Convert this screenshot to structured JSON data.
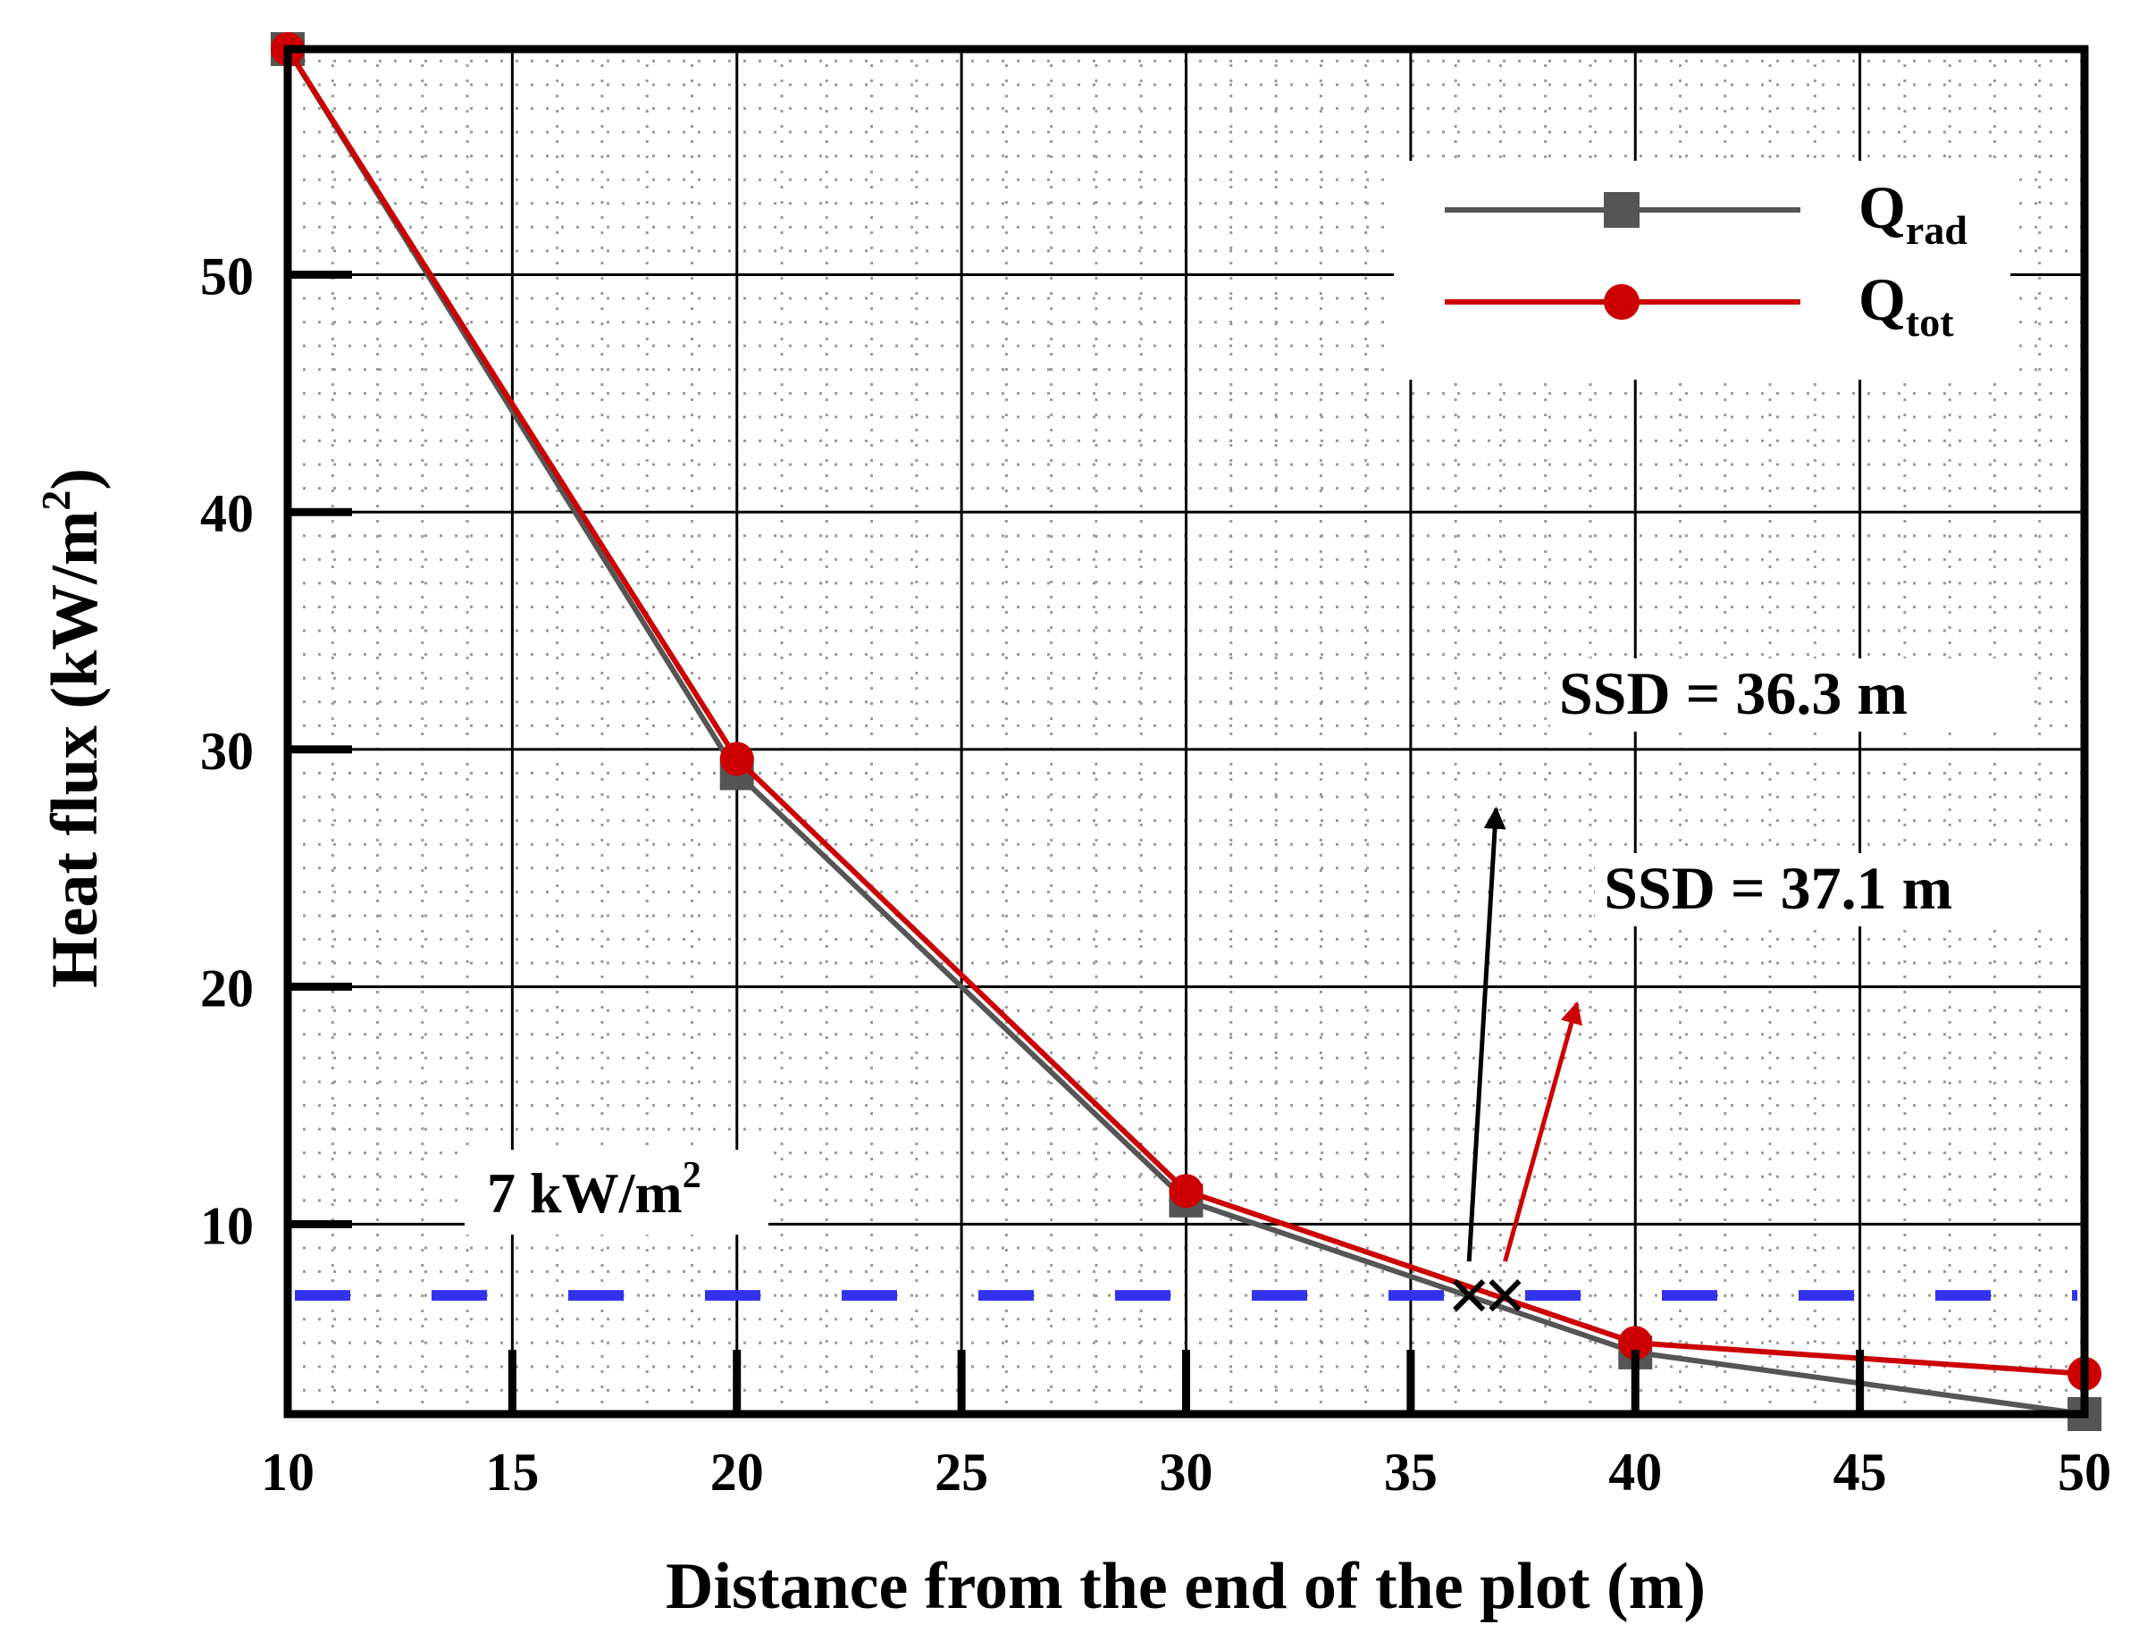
{
  "chart_data": {
    "type": "line",
    "title": "",
    "xlabel": "Distance from the end of the plot (m)",
    "ylabel": {
      "main": "Heat flux (kW/m",
      "sup": "2",
      "tail": ")"
    },
    "xlim": [
      10,
      50
    ],
    "ylim": [
      2,
      59.5
    ],
    "xticks": [
      10,
      15,
      20,
      25,
      30,
      35,
      40,
      45,
      50
    ],
    "yticks": [
      10,
      20,
      30,
      40,
      50
    ],
    "x": [
      10,
      20,
      30,
      40,
      50
    ],
    "series": [
      {
        "name": "Q",
        "sub": "rad",
        "color": "#555555",
        "marker": "square",
        "values": [
          59.5,
          29.0,
          11.0,
          4.6,
          2.0
        ]
      },
      {
        "name": "Q",
        "sub": "tot",
        "color": "#cc0000",
        "marker": "circle",
        "values": [
          59.5,
          29.6,
          11.4,
          5.0,
          3.7
        ]
      }
    ],
    "threshold": {
      "value": 7,
      "label": "7 kW/m",
      "sup": "2",
      "color": "#3333ee"
    },
    "annotations": [
      {
        "text": "SSD = 36.3 m",
        "x": 36.3,
        "y": 7,
        "color": "#000000",
        "label_x": 38.5,
        "label_y": 31.5,
        "arrow_to_x": 36.9,
        "arrow_to_y": 27.5
      },
      {
        "text": "SSD = 37.1 m",
        "x": 37.1,
        "y": 7,
        "color": "#cc0000",
        "label_x": 39.5,
        "label_y": 23.3,
        "arrow_to_x": 38.7,
        "arrow_to_y": 19.3
      }
    ],
    "legend": "top-right",
    "grid": true
  }
}
